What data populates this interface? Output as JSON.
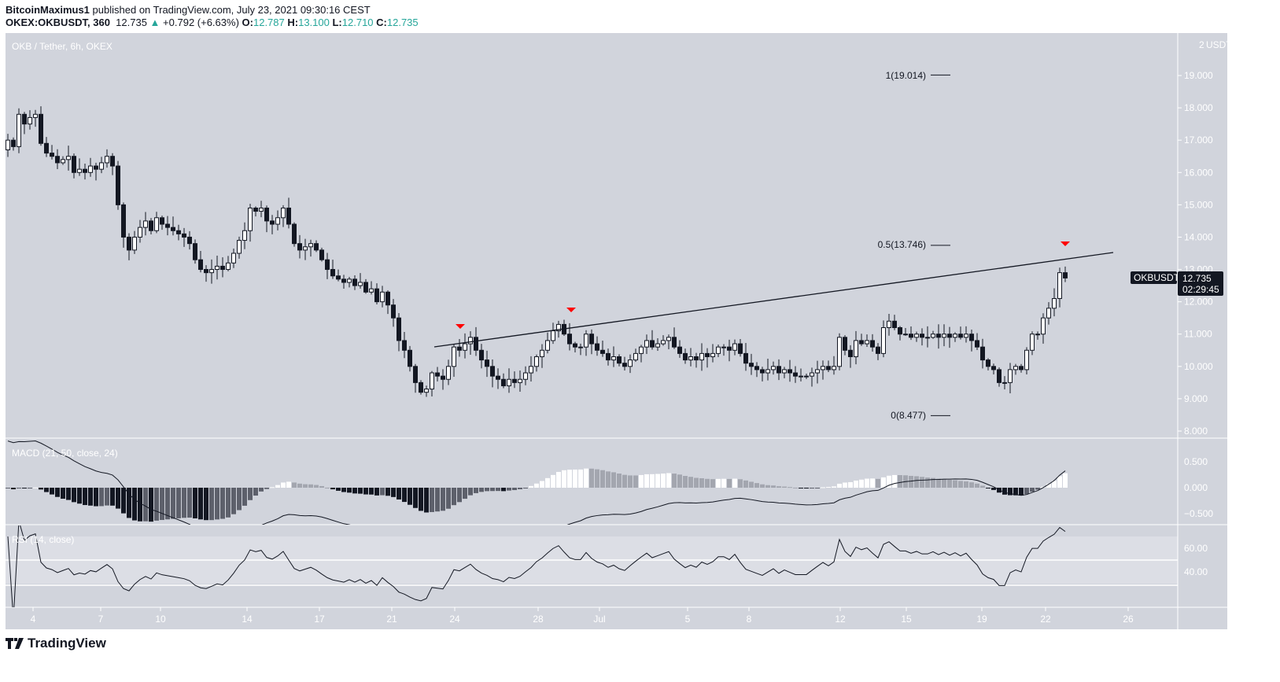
{
  "header": {
    "publisher_line": "BitcoinMaximus1 published on TradingView.com, July 23, 2021 09:30:16 CEST",
    "publisher": "BitcoinMaximus1",
    "published_text": "published on TradingView.com, July 23, 2021 09:30:16 CEST",
    "symbol": "OKEX:OKBUSDT, 360",
    "last": "12.735",
    "change": "+0.792 (+6.63%)",
    "open_label": "O:",
    "open": "12.787",
    "high_label": "H:",
    "high": "13.100",
    "low_label": "L:",
    "low": "12.710",
    "close_label": "C:",
    "close": "12.735",
    "up_icon": "triangle-up-icon"
  },
  "chart": {
    "legend": "OKB / Tether, 6h, OKEX",
    "currency": "USDT",
    "price_ticks": [
      "8.000",
      "9.000",
      "10.000",
      "11.000",
      "12.000",
      "13.000",
      "14.000",
      "15.000",
      "16.000",
      "17.000",
      "18.000",
      "19.000"
    ],
    "price_top_partial": "2",
    "symbol_tag": "OKBUSDT",
    "last_price": "12.735",
    "countdown": "02:29:45",
    "fib_levels": [
      {
        "label": "1(19.014)",
        "value": 19.014
      },
      {
        "label": "0.5(13.746)",
        "value": 13.746
      },
      {
        "label": "0(8.477)",
        "value": 8.477
      }
    ],
    "markers_color": "#ff0000",
    "up_color": "#ffffff",
    "down_color": "#131722",
    "date_labels": [
      "4",
      "7",
      "10",
      "14",
      "17",
      "21",
      "24",
      "28",
      "Jul",
      "5",
      "8",
      "12",
      "15",
      "19",
      "22",
      "26"
    ],
    "closes": [
      17.0,
      16.8,
      17.8,
      17.5,
      17.7,
      17.8,
      16.9,
      16.6,
      16.5,
      16.3,
      16.4,
      16.5,
      16.0,
      16.1,
      16.0,
      16.2,
      16.1,
      16.3,
      16.5,
      16.2,
      15.0,
      14.0,
      13.6,
      14.0,
      14.3,
      14.5,
      14.2,
      14.6,
      14.4,
      14.3,
      14.2,
      14.1,
      14.0,
      13.8,
      13.3,
      13.0,
      12.9,
      13.0,
      13.1,
      13.0,
      13.2,
      13.5,
      13.9,
      14.2,
      14.9,
      14.8,
      14.9,
      14.5,
      14.4,
      14.6,
      14.9,
      14.4,
      13.8,
      13.6,
      13.7,
      13.8,
      13.6,
      13.3,
      13.0,
      12.8,
      12.7,
      12.6,
      12.7,
      12.5,
      12.6,
      12.3,
      12.4,
      12.0,
      12.3,
      11.9,
      11.5,
      10.8,
      10.5,
      10.0,
      9.5,
      9.2,
      9.3,
      9.8,
      9.7,
      9.6,
      10.0,
      10.6,
      10.5,
      10.7,
      10.9,
      10.5,
      10.2,
      10.0,
      9.7,
      9.6,
      9.4,
      9.6,
      9.5,
      9.6,
      9.8,
      10.0,
      10.3,
      10.5,
      10.8,
      11.1,
      11.3,
      11.0,
      10.7,
      10.6,
      10.6,
      11.0,
      10.7,
      10.5,
      10.4,
      10.2,
      10.3,
      10.1,
      10.0,
      10.2,
      10.4,
      10.6,
      10.8,
      10.6,
      10.7,
      10.8,
      10.9,
      10.6,
      10.4,
      10.2,
      10.3,
      10.2,
      10.4,
      10.3,
      10.4,
      10.6,
      10.6,
      10.5,
      10.7,
      10.4,
      10.1,
      10.0,
      9.9,
      9.8,
      9.9,
      10.0,
      9.8,
      9.9,
      9.8,
      9.7,
      9.7,
      9.7,
      9.8,
      9.9,
      10.0,
      9.9,
      10.0,
      10.9,
      10.5,
      10.3,
      10.8,
      10.7,
      10.8,
      10.6,
      10.4,
      11.2,
      11.4,
      11.2,
      11.0,
      11.0,
      10.9,
      11.0,
      10.9,
      10.9,
      11.0,
      10.9,
      11.0,
      10.9,
      11.0,
      10.9,
      11.0,
      10.8,
      10.6,
      10.2,
      10.0,
      9.9,
      9.5,
      9.5,
      9.9,
      10.0,
      9.9,
      10.5,
      11.0,
      11.0,
      11.5,
      11.8,
      12.1,
      12.9,
      12.735
    ]
  },
  "macd": {
    "label": "MACD (21, 50, close, 24)",
    "ticks": [
      "0.500",
      "0.000",
      "−0.500"
    ]
  },
  "rsi": {
    "label": "RSI (14, close)",
    "ticks": [
      "60.00",
      "40.00"
    ]
  },
  "footer": {
    "brand": "TradingView"
  }
}
